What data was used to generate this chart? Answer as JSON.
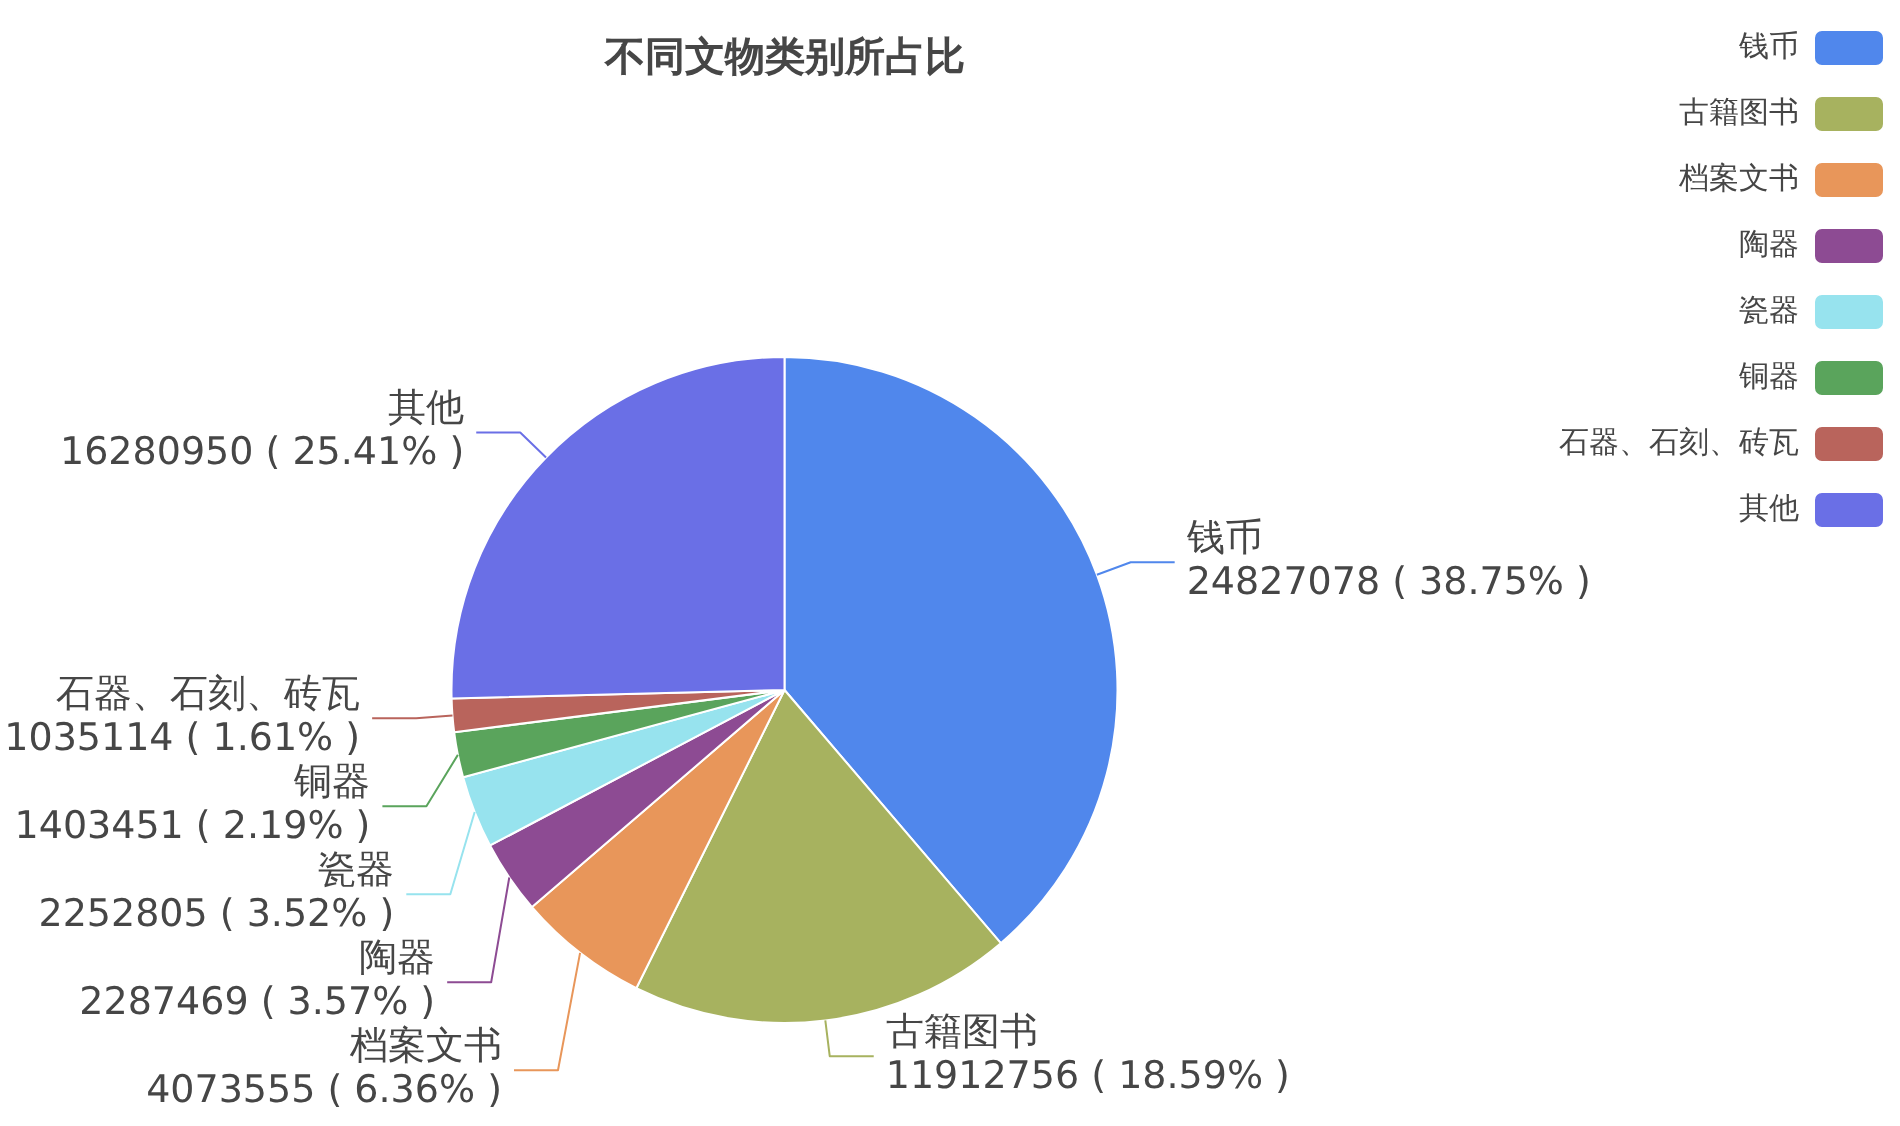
{
  "chart_data": {
    "type": "pie",
    "title": "不同文物类别所占比",
    "categories": [
      "钱币",
      "古籍图书",
      "档案文书",
      "陶器",
      "瓷器",
      "铜器",
      "石器、石刻、砖瓦",
      "其他"
    ],
    "values": [
      24827078,
      11912756,
      4073555,
      2287469,
      2252805,
      1403451,
      1035114,
      16280950
    ],
    "colors": [
      "#5087ec",
      "#a7b25f",
      "#e8965a",
      "#8d4b93",
      "#97e3ee",
      "#5aa45c",
      "#b9645c",
      "#6a6fe6"
    ],
    "value_labels": [
      "24827078 ( 38.75% )",
      "11912756 ( 18.59% )",
      "4073555 ( 6.36% )",
      "2287469 ( 3.57% )",
      "2252805 ( 3.52% )",
      "1403451 ( 2.19% )",
      "1035114 ( 1.61% )",
      "16280950 ( 25.41% )"
    ],
    "legend": "top right"
  }
}
